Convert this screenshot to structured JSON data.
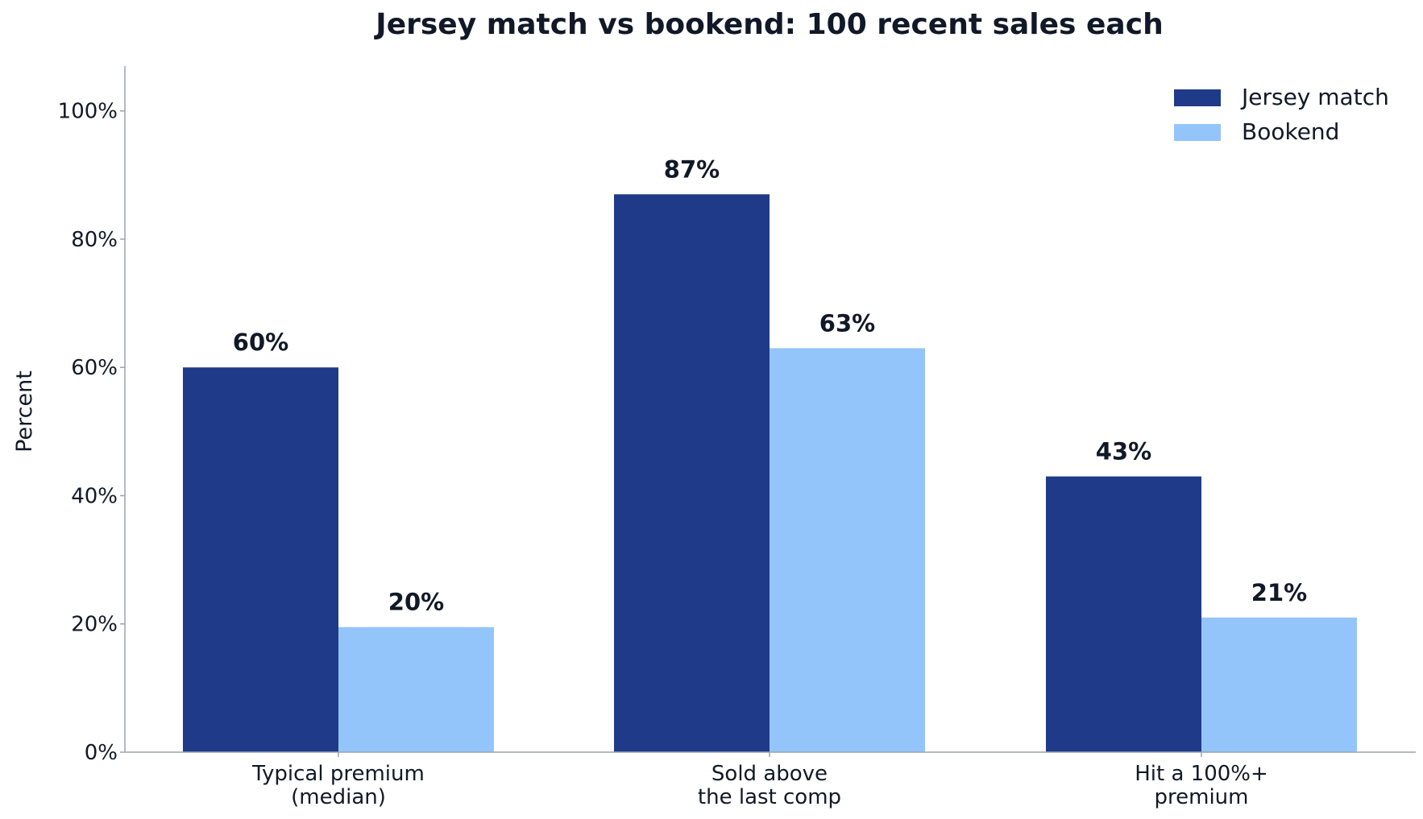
{
  "chart_data": {
    "type": "bar",
    "title": "Jersey match vs bookend: 100 recent sales each",
    "ylabel": "Percent",
    "xlabel": "",
    "ylim": [
      0,
      107
    ],
    "yticks": [
      0,
      20,
      40,
      60,
      80,
      100
    ],
    "ytick_labels": [
      "0%",
      "20%",
      "40%",
      "60%",
      "80%",
      "100%"
    ],
    "categories": [
      [
        "Typical premium",
        "(median)"
      ],
      [
        "Sold above",
        "the last comp"
      ],
      [
        "Hit a 100%+",
        "premium"
      ]
    ],
    "series": [
      {
        "name": "Jersey match",
        "color": "#1f3a89",
        "values": [
          60,
          87,
          43
        ],
        "labels": [
          "60%",
          "87%",
          "43%"
        ]
      },
      {
        "name": "Bookend",
        "color": "#93c5fb",
        "values": [
          19.5,
          63,
          21
        ],
        "labels": [
          "20%",
          "63%",
          "21%"
        ]
      }
    ],
    "legend": "top-right",
    "grid": false
  }
}
